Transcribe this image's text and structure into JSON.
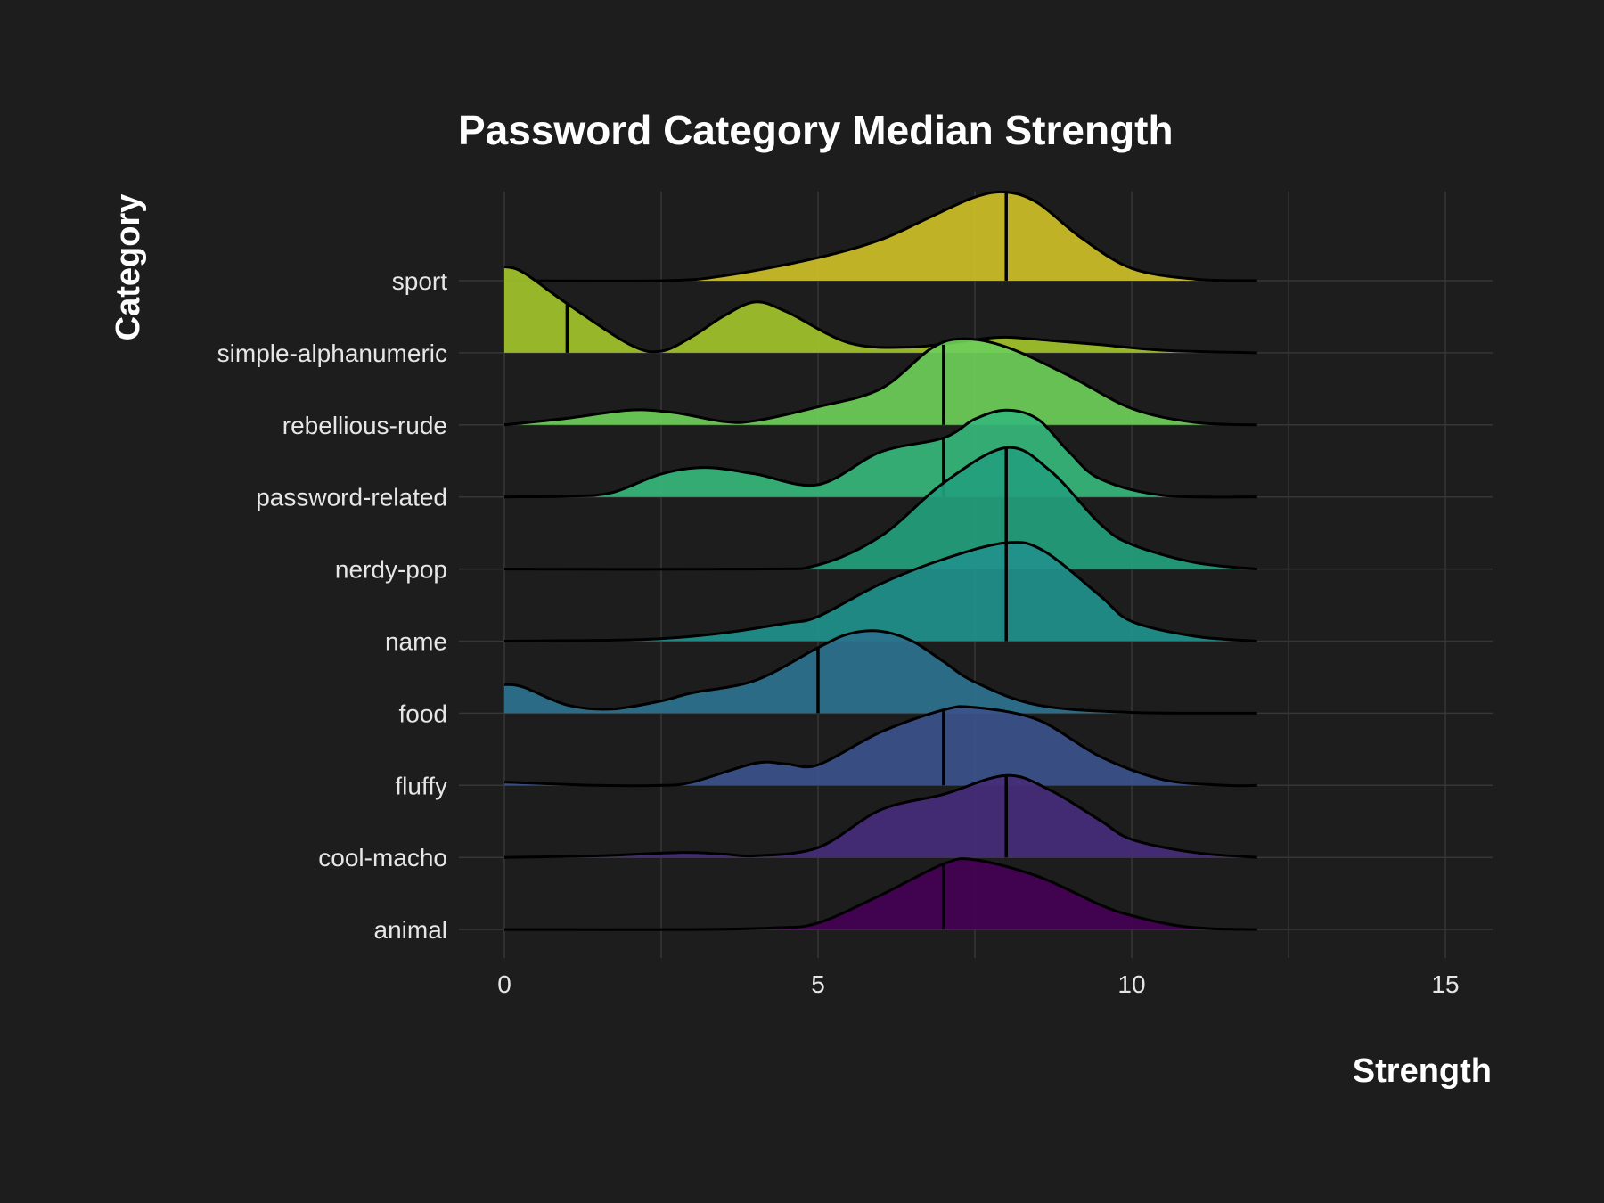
{
  "chart_data": {
    "type": "ridgeline",
    "title": "Password Category Median Strength",
    "xlabel": "Strength",
    "ylabel": "Category",
    "xlim": [
      0,
      15
    ],
    "x_ticks": [
      0,
      5,
      10,
      15
    ],
    "density_range": [
      0,
      12
    ],
    "grid": true,
    "legend": "none",
    "series": [
      {
        "name": "animal",
        "median": 7,
        "color": "#440154",
        "density": [
          [
            0,
            0
          ],
          [
            3,
            0
          ],
          [
            4.3,
            0.02
          ],
          [
            5,
            0.08
          ],
          [
            6,
            0.42
          ],
          [
            7,
            0.8
          ],
          [
            7.5,
            0.85
          ],
          [
            8.5,
            0.65
          ],
          [
            9.5,
            0.3
          ],
          [
            10,
            0.17
          ],
          [
            10.7,
            0.05
          ],
          [
            11.3,
            0.01
          ],
          [
            12,
            0
          ]
        ]
      },
      {
        "name": "cool-macho",
        "median": 8,
        "color": "#472d7b",
        "density": [
          [
            0,
            0
          ],
          [
            1.5,
            0.02
          ],
          [
            2.8,
            0.06
          ],
          [
            3.5,
            0.04
          ],
          [
            4,
            0.02
          ],
          [
            5,
            0.12
          ],
          [
            6,
            0.58
          ],
          [
            7,
            0.77
          ],
          [
            8,
            1.0
          ],
          [
            8.7,
            0.82
          ],
          [
            9.5,
            0.45
          ],
          [
            10,
            0.22
          ],
          [
            11,
            0.06
          ],
          [
            12,
            0
          ]
        ]
      },
      {
        "name": "fluffy",
        "median": 7,
        "color": "#3b528b",
        "density": [
          [
            0,
            0.04
          ],
          [
            1.5,
            0
          ],
          [
            2.5,
            0
          ],
          [
            3,
            0.04
          ],
          [
            4,
            0.27
          ],
          [
            4.5,
            0.26
          ],
          [
            5,
            0.25
          ],
          [
            6,
            0.65
          ],
          [
            7,
            0.92
          ],
          [
            7.5,
            0.95
          ],
          [
            8.5,
            0.8
          ],
          [
            9.5,
            0.35
          ],
          [
            10.5,
            0.07
          ],
          [
            11.5,
            0
          ],
          [
            12,
            0
          ]
        ]
      },
      {
        "name": "food",
        "median": 5,
        "color": "#2c728e",
        "density": [
          [
            0,
            0.35
          ],
          [
            0.3,
            0.32
          ],
          [
            1,
            0.1
          ],
          [
            1.7,
            0.05
          ],
          [
            2.5,
            0.15
          ],
          [
            3,
            0.25
          ],
          [
            4,
            0.4
          ],
          [
            5,
            0.8
          ],
          [
            5.5,
            0.97
          ],
          [
            6,
            1.0
          ],
          [
            6.5,
            0.88
          ],
          [
            7,
            0.63
          ],
          [
            7.5,
            0.38
          ],
          [
            8.5,
            0.1
          ],
          [
            10,
            0.01
          ],
          [
            12,
            0
          ]
        ]
      },
      {
        "name": "name",
        "median": 8,
        "color": "#21918c",
        "density": [
          [
            0,
            0
          ],
          [
            1.5,
            0.01
          ],
          [
            2.5,
            0.03
          ],
          [
            3.5,
            0.1
          ],
          [
            4.5,
            0.22
          ],
          [
            5,
            0.3
          ],
          [
            6,
            0.7
          ],
          [
            7,
            1.0
          ],
          [
            8,
            1.2
          ],
          [
            8.6,
            1.1
          ],
          [
            9.5,
            0.55
          ],
          [
            10,
            0.24
          ],
          [
            11,
            0.06
          ],
          [
            12,
            0
          ]
        ]
      },
      {
        "name": "nerdy-pop",
        "median": 8,
        "color": "#23a07d",
        "density": [
          [
            0,
            0
          ],
          [
            4,
            0
          ],
          [
            5,
            0.05
          ],
          [
            6,
            0.4
          ],
          [
            7,
            1.05
          ],
          [
            8,
            1.48
          ],
          [
            8.7,
            1.2
          ],
          [
            9.5,
            0.55
          ],
          [
            10,
            0.3
          ],
          [
            11,
            0.08
          ],
          [
            12,
            0
          ]
        ]
      },
      {
        "name": "password-related",
        "median": 7,
        "color": "#35b779",
        "density": [
          [
            0,
            0
          ],
          [
            1,
            0.01
          ],
          [
            1.7,
            0.05
          ],
          [
            2.5,
            0.28
          ],
          [
            3.2,
            0.36
          ],
          [
            4,
            0.28
          ],
          [
            5,
            0.15
          ],
          [
            6,
            0.55
          ],
          [
            7,
            0.72
          ],
          [
            7.5,
            0.95
          ],
          [
            8,
            1.06
          ],
          [
            8.5,
            0.95
          ],
          [
            9,
            0.55
          ],
          [
            9.5,
            0.22
          ],
          [
            10.5,
            0.02
          ],
          [
            12,
            0
          ]
        ]
      },
      {
        "name": "rebellious-rude",
        "median": 7,
        "color": "#6cce59",
        "density": [
          [
            0,
            0
          ],
          [
            1,
            0.08
          ],
          [
            2,
            0.18
          ],
          [
            2.7,
            0.15
          ],
          [
            3.5,
            0.04
          ],
          [
            4,
            0.05
          ],
          [
            5,
            0.22
          ],
          [
            6,
            0.44
          ],
          [
            6.8,
            0.93
          ],
          [
            7.3,
            1.05
          ],
          [
            8,
            0.95
          ],
          [
            9,
            0.6
          ],
          [
            10,
            0.2
          ],
          [
            11,
            0.03
          ],
          [
            12,
            0
          ]
        ]
      },
      {
        "name": "simple-alphanumeric",
        "median": 1,
        "color": "#a2c32a",
        "density": [
          [
            0,
            1.05
          ],
          [
            0.3,
            0.98
          ],
          [
            1,
            0.6
          ],
          [
            2,
            0.1
          ],
          [
            2.5,
            0.02
          ],
          [
            3,
            0.2
          ],
          [
            3.5,
            0.45
          ],
          [
            4,
            0.62
          ],
          [
            4.5,
            0.5
          ],
          [
            5.5,
            0.12
          ],
          [
            6.5,
            0.07
          ],
          [
            7.5,
            0.16
          ],
          [
            8,
            0.19
          ],
          [
            8.7,
            0.15
          ],
          [
            9.5,
            0.1
          ],
          [
            10.5,
            0.03
          ],
          [
            12,
            0
          ]
        ]
      },
      {
        "name": "sport",
        "median": 8,
        "color": "#cdbf28",
        "density": [
          [
            0,
            0
          ],
          [
            2.5,
            0
          ],
          [
            3.5,
            0.06
          ],
          [
            5,
            0.28
          ],
          [
            6,
            0.5
          ],
          [
            6.8,
            0.78
          ],
          [
            7.5,
            1.02
          ],
          [
            8,
            1.08
          ],
          [
            8.5,
            0.95
          ],
          [
            9.2,
            0.52
          ],
          [
            10,
            0.15
          ],
          [
            11,
            0.02
          ],
          [
            12,
            0
          ]
        ]
      }
    ]
  }
}
